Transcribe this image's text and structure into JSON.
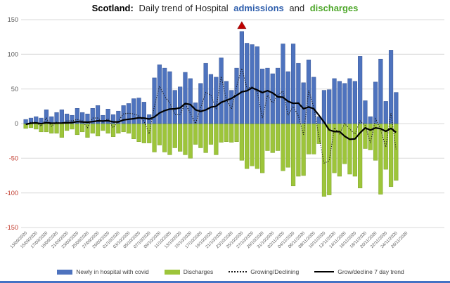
{
  "title": {
    "prefix": "Scotland:",
    "middle": "Daily trend of Hospital",
    "admissions": "admissions",
    "and": "and",
    "discharges": "discharges"
  },
  "colors": {
    "admissions_bar": "#4E73BE",
    "admissions_border": "#3A5796",
    "discharges_bar": "#9DC53A",
    "discharges_border": "#7EA22C",
    "title_admissions": "#2E5EAC",
    "title_discharges": "#4EA72A",
    "negative_tick": "#C0392B",
    "positive_tick": "#595959",
    "x_tick": "#595959",
    "gridline": "#D9D9D9",
    "dotted_line": "#1A1A1A",
    "trend_line": "#000000",
    "peak_marker": "#C00000",
    "footer_strip": "#4472C4"
  },
  "legend": [
    {
      "swatch": "bar-blue",
      "label": "Newly in hospital with covid"
    },
    {
      "swatch": "bar-green",
      "label": "Discharges"
    },
    {
      "swatch": "dotted",
      "label": "Growing/Declining"
    },
    {
      "swatch": "solid",
      "label": "Grow/decline 7 day trend"
    }
  ],
  "chart_data": {
    "type": "bar",
    "title": "Scotland: Daily trend of Hospital admissions and discharges",
    "ylim": [
      -150,
      150
    ],
    "y_ticks": [
      150,
      100,
      50,
      0,
      -50,
      -100,
      -150
    ],
    "grid": true,
    "legend_position": "bottom",
    "start_date": "13/09/2020",
    "x_tick_every_days": 2,
    "x_tick_labels": [
      "13/09/2020",
      "15/09/2020",
      "17/09/2020",
      "19/09/2020",
      "21/09/2020",
      "23/09/2020",
      "25/09/2020",
      "27/09/2020",
      "29/09/2020",
      "01/10/2020",
      "03/10/2020",
      "05/10/2020",
      "07/10/2020",
      "09/10/2020",
      "11/10/2020",
      "13/10/2020",
      "15/10/2020",
      "17/10/2020",
      "19/10/2020",
      "21/10/2020",
      "23/10/2020",
      "25/10/2020",
      "27/10/2020",
      "29/10/2020",
      "31/10/2020",
      "02/11/2020",
      "04/11/2020",
      "06/11/2020",
      "08/11/2020",
      "10/11/2020",
      "12/11/2020",
      "14/11/2020",
      "16/11/2020",
      "18/11/2020",
      "20/11/2020",
      "22/11/2020",
      "24/11/2020",
      "26/11/2020"
    ],
    "series": [
      {
        "name": "Newly in hospital with covid",
        "type": "bar",
        "values": [
          6,
          8,
          10,
          8,
          20,
          10,
          16,
          20,
          14,
          12,
          22,
          16,
          14,
          22,
          26,
          12,
          21,
          13,
          18,
          26,
          29,
          36,
          37,
          31,
          13,
          66,
          85,
          80,
          75,
          48,
          53,
          74,
          65,
          30,
          58,
          87,
          71,
          67,
          95,
          61,
          48,
          80,
          133,
          116,
          114,
          111,
          79,
          80,
          72,
          80,
          115,
          75,
          115,
          87,
          59,
          92,
          67,
          10,
          48,
          49,
          65,
          61,
          58,
          65,
          61,
          97,
          33,
          10,
          60,
          93,
          32,
          106,
          45
        ]
      },
      {
        "name": "Discharges",
        "type": "bar",
        "values": [
          -7,
          -6,
          -8,
          -12,
          -12,
          -14,
          -14,
          -20,
          -10,
          -8,
          -16,
          -12,
          -20,
          -14,
          -18,
          -10,
          -14,
          -19,
          -14,
          -12,
          -14,
          -22,
          -26,
          -28,
          -28,
          -41,
          -31,
          -41,
          -45,
          -35,
          -40,
          -45,
          -50,
          -30,
          -35,
          -42,
          -30,
          -45,
          -27,
          -26,
          -27,
          -26,
          -53,
          -65,
          -61,
          -65,
          -71,
          -39,
          -42,
          -39,
          -68,
          -63,
          -90,
          -76,
          -75,
          -44,
          -44,
          -29,
          -105,
          -103,
          -71,
          -76,
          -58,
          -73,
          -76,
          -93,
          -36,
          -38,
          -53,
          -102,
          -66,
          -91,
          -82
        ]
      },
      {
        "name": "Growing/Declining",
        "type": "line-dotted",
        "derived": "daily net = admissions + discharges"
      },
      {
        "name": "Grow/decline 7 day trend",
        "type": "line",
        "derived": "7-day trailing average of daily net"
      }
    ],
    "annotation": {
      "type": "triangle-marker",
      "color": "#C00000",
      "position": "above maximum admissions bar (133 on 25/10/2020)"
    }
  }
}
